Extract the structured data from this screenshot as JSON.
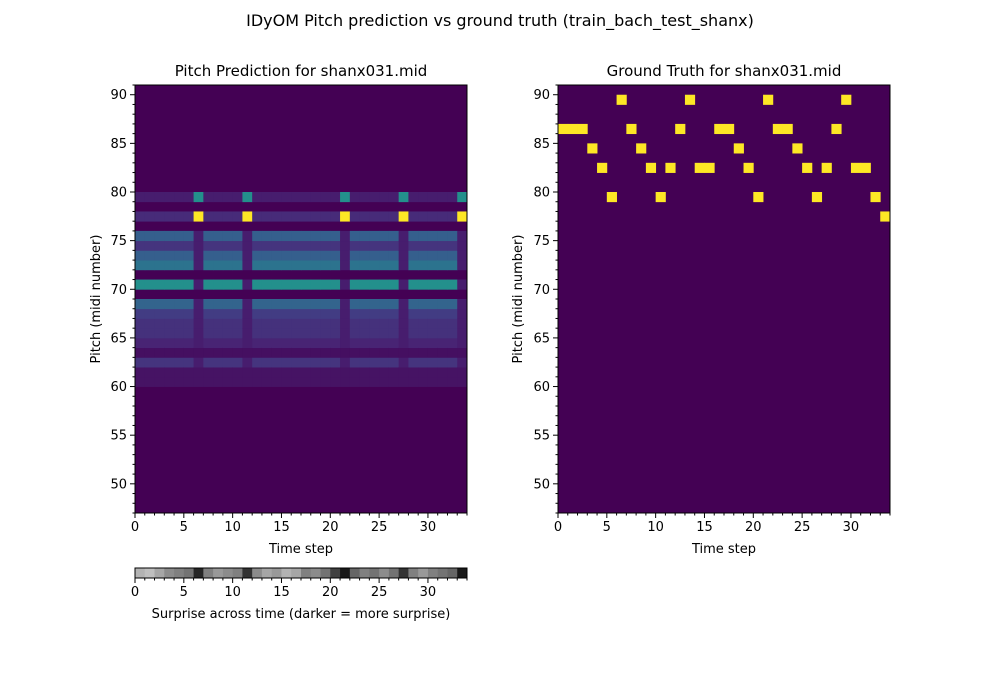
{
  "suptitle": "IDyOM Pitch prediction vs ground truth (train_bach_test_shanx)",
  "colors": {
    "viridis_low": "#440154",
    "viridis_mid": "#21918c",
    "viridis_high": "#fde725",
    "text": "#000000"
  },
  "chart_data": [
    {
      "type": "heatmap",
      "title": "Pitch Prediction for shanx031.mid",
      "xlabel": "Time step",
      "ylabel": "Pitch (midi number)",
      "xlim": [
        0,
        34
      ],
      "ylim": [
        47,
        91
      ],
      "xticks": [
        0,
        5,
        10,
        15,
        20,
        25,
        30
      ],
      "yticks": [
        50,
        55,
        60,
        65,
        70,
        75,
        80,
        85,
        90
      ],
      "colormap": "viridis",
      "value_range": [
        0,
        1
      ],
      "baseline_by_pitch": [
        {
          "pitch": 79,
          "value": 0.08
        },
        {
          "pitch": 77,
          "value": 0.12
        },
        {
          "pitch": 75,
          "value": 0.3
        },
        {
          "pitch": 74,
          "value": 0.15
        },
        {
          "pitch": 73,
          "value": 0.3
        },
        {
          "pitch": 72,
          "value": 0.38
        },
        {
          "pitch": 70,
          "value": 0.5
        },
        {
          "pitch": 68,
          "value": 0.32
        },
        {
          "pitch": 67,
          "value": 0.18
        },
        {
          "pitch": 66,
          "value": 0.14
        },
        {
          "pitch": 65,
          "value": 0.14
        },
        {
          "pitch": 64,
          "value": 0.1
        },
        {
          "pitch": 63,
          "value": 0.04
        },
        {
          "pitch": 62,
          "value": 0.15
        },
        {
          "pitch": 61,
          "value": 0.05
        },
        {
          "pitch": 60,
          "value": 0.05
        }
      ],
      "dim_columns": [
        6,
        11,
        21,
        27,
        33
      ],
      "dim_column_value": 0.08,
      "highlight_cells": [
        {
          "t": 6,
          "pitch": 79,
          "value": 0.5
        },
        {
          "t": 6,
          "pitch": 77,
          "value": 1.0
        },
        {
          "t": 11,
          "pitch": 79,
          "value": 0.5
        },
        {
          "t": 11,
          "pitch": 77,
          "value": 1.0
        },
        {
          "t": 21,
          "pitch": 79,
          "value": 0.5
        },
        {
          "t": 21,
          "pitch": 77,
          "value": 1.0
        },
        {
          "t": 27,
          "pitch": 79,
          "value": 0.5
        },
        {
          "t": 27,
          "pitch": 77,
          "value": 1.0
        },
        {
          "t": 33,
          "pitch": 79,
          "value": 0.5
        },
        {
          "t": 33,
          "pitch": 77,
          "value": 1.0
        }
      ]
    },
    {
      "type": "heatmap",
      "title": "Ground Truth for shanx031.mid",
      "xlabel": "Time step",
      "ylabel": "Pitch (midi number)",
      "xlim": [
        0,
        34
      ],
      "ylim": [
        47,
        91
      ],
      "xticks": [
        0,
        5,
        10,
        15,
        20,
        25,
        30
      ],
      "yticks": [
        50,
        55,
        60,
        65,
        70,
        75,
        80,
        85,
        90
      ],
      "colormap": "viridis",
      "notes": [
        {
          "t": 0,
          "pitch": 86
        },
        {
          "t": 1,
          "pitch": 86
        },
        {
          "t": 2,
          "pitch": 86
        },
        {
          "t": 3,
          "pitch": 84
        },
        {
          "t": 4,
          "pitch": 82
        },
        {
          "t": 5,
          "pitch": 79
        },
        {
          "t": 6,
          "pitch": 89
        },
        {
          "t": 7,
          "pitch": 86
        },
        {
          "t": 8,
          "pitch": 84
        },
        {
          "t": 9,
          "pitch": 82
        },
        {
          "t": 10,
          "pitch": 79
        },
        {
          "t": 11,
          "pitch": 82
        },
        {
          "t": 12,
          "pitch": 86
        },
        {
          "t": 13,
          "pitch": 89
        },
        {
          "t": 14,
          "pitch": 82
        },
        {
          "t": 15,
          "pitch": 82
        },
        {
          "t": 16,
          "pitch": 86
        },
        {
          "t": 17,
          "pitch": 86
        },
        {
          "t": 18,
          "pitch": 84
        },
        {
          "t": 19,
          "pitch": 82
        },
        {
          "t": 20,
          "pitch": 79
        },
        {
          "t": 21,
          "pitch": 89
        },
        {
          "t": 22,
          "pitch": 86
        },
        {
          "t": 23,
          "pitch": 86
        },
        {
          "t": 24,
          "pitch": 84
        },
        {
          "t": 25,
          "pitch": 82
        },
        {
          "t": 26,
          "pitch": 79
        },
        {
          "t": 27,
          "pitch": 82
        },
        {
          "t": 28,
          "pitch": 86
        },
        {
          "t": 29,
          "pitch": 89
        },
        {
          "t": 30,
          "pitch": 82
        },
        {
          "t": 31,
          "pitch": 82
        },
        {
          "t": 32,
          "pitch": 79
        },
        {
          "t": 33,
          "pitch": 77
        }
      ]
    },
    {
      "type": "heatmap",
      "xlabel": "Surprise across time (darker = more surprise)",
      "xlim": [
        0,
        34
      ],
      "xticks": [
        0,
        5,
        10,
        15,
        20,
        25,
        30
      ],
      "colormap": "gray_r",
      "surprise": [
        0.3,
        0.25,
        0.35,
        0.45,
        0.5,
        0.55,
        0.85,
        0.5,
        0.4,
        0.45,
        0.5,
        0.8,
        0.45,
        0.35,
        0.4,
        0.3,
        0.35,
        0.5,
        0.45,
        0.55,
        0.75,
        0.9,
        0.6,
        0.5,
        0.55,
        0.45,
        0.55,
        0.8,
        0.5,
        0.4,
        0.5,
        0.55,
        0.6,
        0.9
      ]
    }
  ]
}
